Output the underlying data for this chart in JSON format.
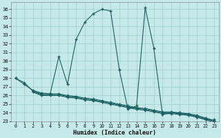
{
  "bg_color": "#c5e8e8",
  "grid_color": "#9ecece",
  "line_color": "#1a6060",
  "xlabel": "Humidex (Indice chaleur)",
  "xlim": [
    -0.5,
    23.5
  ],
  "ylim": [
    23,
    36.8
  ],
  "xticks": [
    0,
    1,
    2,
    3,
    4,
    5,
    6,
    7,
    8,
    9,
    10,
    11,
    12,
    13,
    14,
    15,
    16,
    17,
    18,
    19,
    20,
    21,
    22,
    23
  ],
  "yticks": [
    23,
    24,
    25,
    26,
    27,
    28,
    29,
    30,
    31,
    32,
    33,
    34,
    35,
    36
  ],
  "s1_x": [
    0,
    1,
    2,
    3,
    4,
    5,
    6,
    7,
    8,
    9,
    10,
    11,
    12,
    13,
    14,
    15,
    16,
    17,
    18,
    19,
    20,
    21,
    22,
    23
  ],
  "s1_y": [
    28.0,
    27.5,
    26.5,
    26.2,
    26.2,
    30.5,
    27.3,
    32.5,
    34.5,
    35.5,
    36.0,
    35.8,
    29.0,
    24.4,
    24.8,
    36.2,
    31.5,
    23.8,
    24.0,
    24.0,
    23.8,
    23.5,
    23.2,
    23.2
  ],
  "s2_x": [
    0,
    1,
    2,
    3,
    4,
    5,
    6,
    7,
    8,
    9,
    10,
    11,
    12,
    13,
    14,
    15,
    16,
    17,
    18,
    19,
    20,
    21,
    22,
    23
  ],
  "s2_y": [
    28.0,
    27.3,
    26.6,
    26.3,
    26.2,
    26.2,
    26.0,
    25.9,
    25.7,
    25.6,
    25.4,
    25.2,
    25.0,
    24.8,
    24.6,
    24.5,
    24.3,
    24.1,
    24.1,
    24.0,
    23.9,
    23.7,
    23.4,
    23.1
  ],
  "s3_x": [
    2,
    3,
    4,
    5,
    6,
    7,
    8,
    9,
    10,
    11,
    12,
    13,
    14,
    15,
    16,
    17,
    18,
    19,
    20,
    21,
    22,
    23
  ],
  "s3_y": [
    26.5,
    26.1,
    26.1,
    26.1,
    25.9,
    25.8,
    25.6,
    25.5,
    25.3,
    25.1,
    24.9,
    24.7,
    24.5,
    24.4,
    24.2,
    24.0,
    24.0,
    23.9,
    23.8,
    23.6,
    23.3,
    23.0
  ],
  "s4_x": [
    2,
    3,
    4,
    5,
    6,
    7,
    8,
    9,
    10,
    11,
    12,
    13,
    14,
    15,
    16,
    17,
    18,
    19,
    20,
    21,
    22,
    23
  ],
  "s4_y": [
    26.4,
    26.0,
    26.0,
    26.0,
    25.8,
    25.7,
    25.5,
    25.4,
    25.2,
    25.0,
    24.8,
    24.6,
    24.4,
    24.3,
    24.1,
    23.9,
    23.9,
    23.8,
    23.7,
    23.5,
    23.2,
    22.9
  ]
}
